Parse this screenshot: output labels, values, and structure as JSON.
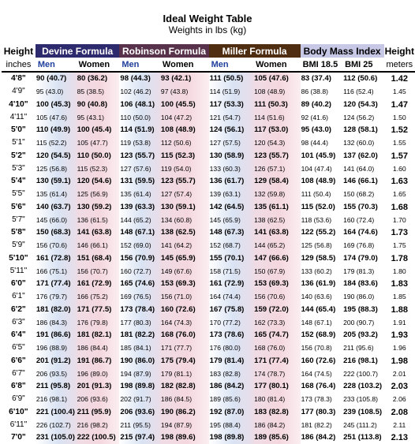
{
  "title": "Ideal Weight Table",
  "subtitle": "Weights in lbs (kg)",
  "header": {
    "height_label": "Height",
    "height_unit": "inches",
    "height_label_right": "Height",
    "height_unit_right": "meters",
    "devine": "Devine Formula",
    "robinson": "Robinson Formula",
    "miller": "Miller Formula",
    "bmi": "Body Mass Index",
    "men": "Men",
    "women": "Women",
    "bmi185": "BMI 18.5",
    "bmi25": "BMI 25"
  },
  "colors": {
    "devine": "#2e2a6e",
    "robinson": "#58324a",
    "miller": "#4e2d10",
    "bmi": "#c6c8e6",
    "men_bg": "#d9e3f3",
    "women_bg": "#f4d7de"
  },
  "rows": [
    {
      "h": "4'8\"",
      "dm": "90 (40.7)",
      "dw": "80 (36.2)",
      "rm": "98 (44.3)",
      "rw": "93 (42.1)",
      "mm": "111 (50.5)",
      "mw": "105 (47.6)",
      "b1": "83 (37.4)",
      "b2": "112 (50.6)",
      "m": "1.42"
    },
    {
      "h": "4'9\"",
      "dm": "95 (43.0)",
      "dw": "85 (38.5)",
      "rm": "102 (46.2)",
      "rw": "97 (43.8)",
      "mm": "114 (51.9)",
      "mw": "108 (48.9)",
      "b1": "86 (38.8)",
      "b2": "116 (52.4)",
      "m": "1.45"
    },
    {
      "h": "4'10\"",
      "dm": "100 (45.3)",
      "dw": "90 (40.8)",
      "rm": "106 (48.1)",
      "rw": "100 (45.5)",
      "mm": "117 (53.3)",
      "mw": "111 (50.3)",
      "b1": "89 (40.2)",
      "b2": "120 (54.3)",
      "m": "1.47"
    },
    {
      "h": "4'11\"",
      "dm": "105 (47.6)",
      "dw": "95 (43.1)",
      "rm": "110 (50.0)",
      "rw": "104 (47.2)",
      "mm": "121 (54.7)",
      "mw": "114 (51.6)",
      "b1": "92 (41.6)",
      "b2": "124 (56.2)",
      "m": "1.50"
    },
    {
      "h": "5'0\"",
      "dm": "110 (49.9)",
      "dw": "100 (45.4)",
      "rm": "114 (51.9)",
      "rw": "108 (48.9)",
      "mm": "124 (56.1)",
      "mw": "117 (53.0)",
      "b1": "95 (43.0)",
      "b2": "128 (58.1)",
      "m": "1.52"
    },
    {
      "h": "5'1\"",
      "dm": "115 (52.2)",
      "dw": "105 (47.7)",
      "rm": "119 (53.8)",
      "rw": "112 (50.6)",
      "mm": "127 (57.5)",
      "mw": "120 (54.3)",
      "b1": "98 (44.4)",
      "b2": "132 (60.0)",
      "m": "1.55"
    },
    {
      "h": "5'2\"",
      "dm": "120 (54.5)",
      "dw": "110 (50.0)",
      "rm": "123 (55.7)",
      "rw": "115 (52.3)",
      "mm": "130 (58.9)",
      "mw": "123 (55.7)",
      "b1": "101 (45.9)",
      "b2": "137 (62.0)",
      "m": "1.57"
    },
    {
      "h": "5'3\"",
      "dm": "125 (56.8)",
      "dw": "115 (52.3)",
      "rm": "127 (57.6)",
      "rw": "119 (54.0)",
      "mm": "133 (60.3)",
      "mw": "126 (57.1)",
      "b1": "104 (47.4)",
      "b2": "141 (64.0)",
      "m": "1.60"
    },
    {
      "h": "5'4\"",
      "dm": "130 (59.1)",
      "dw": "120 (54.6)",
      "rm": "131 (59.5)",
      "rw": "123 (55.7)",
      "mm": "136 (61.7)",
      "mw": "129 (58.4)",
      "b1": "108 (48.9)",
      "b2": "146 (66.1)",
      "m": "1.63"
    },
    {
      "h": "5'5\"",
      "dm": "135 (61.4)",
      "dw": "125 (56.9)",
      "rm": "135 (61.4)",
      "rw": "127 (57.4)",
      "mm": "139 (63.1)",
      "mw": "132 (59.8)",
      "b1": "111 (50.4)",
      "b2": "150 (68.2)",
      "m": "1.65"
    },
    {
      "h": "5'6\"",
      "dm": "140 (63.7)",
      "dw": "130 (59.2)",
      "rm": "139 (63.3)",
      "rw": "130 (59.1)",
      "mm": "142 (64.5)",
      "mw": "135 (61.1)",
      "b1": "115 (52.0)",
      "b2": "155 (70.3)",
      "m": "1.68"
    },
    {
      "h": "5'7\"",
      "dm": "145 (66.0)",
      "dw": "136 (61.5)",
      "rm": "144 (65.2)",
      "rw": "134 (60.8)",
      "mm": "145 (65.9)",
      "mw": "138 (62.5)",
      "b1": "118 (53.6)",
      "b2": "160 (72.4)",
      "m": "1.70"
    },
    {
      "h": "5'8\"",
      "dm": "150 (68.3)",
      "dw": "141 (63.8)",
      "rm": "148 (67.1)",
      "rw": "138 (62.5)",
      "mm": "148 (67.3)",
      "mw": "141 (63.8)",
      "b1": "122 (55.2)",
      "b2": "164 (74.6)",
      "m": "1.73"
    },
    {
      "h": "5'9\"",
      "dm": "156 (70.6)",
      "dw": "146 (66.1)",
      "rm": "152 (69.0)",
      "rw": "141 (64.2)",
      "mm": "152 (68.7)",
      "mw": "144 (65.2)",
      "b1": "125 (56.8)",
      "b2": "169 (76.8)",
      "m": "1.75"
    },
    {
      "h": "5'10\"",
      "dm": "161 (72.8)",
      "dw": "151 (68.4)",
      "rm": "156 (70.9)",
      "rw": "145 (65.9)",
      "mm": "155 (70.1)",
      "mw": "147 (66.6)",
      "b1": "129 (58.5)",
      "b2": "174 (79.0)",
      "m": "1.78"
    },
    {
      "h": "5'11\"",
      "dm": "166 (75.1)",
      "dw": "156 (70.7)",
      "rm": "160 (72.7)",
      "rw": "149 (67.6)",
      "mm": "158 (71.5)",
      "mw": "150 (67.9)",
      "b1": "133 (60.2)",
      "b2": "179 (81.3)",
      "m": "1.80"
    },
    {
      "h": "6'0\"",
      "dm": "171 (77.4)",
      "dw": "161 (72.9)",
      "rm": "165 (74.6)",
      "rw": "153 (69.3)",
      "mm": "161 (72.9)",
      "mw": "153 (69.3)",
      "b1": "136 (61.9)",
      "b2": "184 (83.6)",
      "m": "1.83"
    },
    {
      "h": "6'1\"",
      "dm": "176 (79.7)",
      "dw": "166 (75.2)",
      "rm": "169 (76.5)",
      "rw": "156 (71.0)",
      "mm": "164 (74.4)",
      "mw": "156 (70.6)",
      "b1": "140 (63.6)",
      "b2": "190 (86.0)",
      "m": "1.85"
    },
    {
      "h": "6'2\"",
      "dm": "181 (82.0)",
      "dw": "171 (77.5)",
      "rm": "173 (78.4)",
      "rw": "160 (72.6)",
      "mm": "167 (75.8)",
      "mw": "159 (72.0)",
      "b1": "144 (65.4)",
      "b2": "195 (88.3)",
      "m": "1.88"
    },
    {
      "h": "6'3\"",
      "dm": "186 (84.3)",
      "dw": "176 (79.8)",
      "rm": "177 (80.3)",
      "rw": "164 (74.3)",
      "mm": "170 (77.2)",
      "mw": "162 (73.3)",
      "b1": "148 (67.1)",
      "b2": "200 (90.7)",
      "m": "1.91"
    },
    {
      "h": "6'4\"",
      "dm": "191 (86.6)",
      "dw": "181 (82.1)",
      "rm": "181 (82.2)",
      "rw": "168 (76.0)",
      "mm": "173 (78.6)",
      "mw": "165 (74.7)",
      "b1": "152 (68.9)",
      "b2": "205 (93.2)",
      "m": "1.93"
    },
    {
      "h": "6'5\"",
      "dm": "196 (88.9)",
      "dw": "186 (84.4)",
      "rm": "185 (84.1)",
      "rw": "171 (77.7)",
      "mm": "176 (80.0)",
      "mw": "168 (76.0)",
      "b1": "156 (70.8)",
      "b2": "211 (95.6)",
      "m": "1.96"
    },
    {
      "h": "6'6\"",
      "dm": "201 (91.2)",
      "dw": "191 (86.7)",
      "rm": "190 (86.0)",
      "rw": "175 (79.4)",
      "mm": "179 (81.4)",
      "mw": "171 (77.4)",
      "b1": "160 (72.6)",
      "b2": "216 (98.1)",
      "m": "1.98"
    },
    {
      "h": "6'7\"",
      "dm": "206 (93.5)",
      "dw": "196 (89.0)",
      "rm": "194 (87.9)",
      "rw": "179 (81.1)",
      "mm": "183 (82.8)",
      "mw": "174 (78.7)",
      "b1": "164 (74.5)",
      "b2": "222 (100.7)",
      "m": "2.01"
    },
    {
      "h": "6'8\"",
      "dm": "211 (95.8)",
      "dw": "201 (91.3)",
      "rm": "198 (89.8)",
      "rw": "182 (82.8)",
      "mm": "186 (84.2)",
      "mw": "177 (80.1)",
      "b1": "168 (76.4)",
      "b2": "228 (103.2)",
      "m": "2.03"
    },
    {
      "h": "6'9\"",
      "dm": "216 (98.1)",
      "dw": "206 (93.6)",
      "rm": "202 (91.7)",
      "rw": "186 (84.5)",
      "mm": "189 (85.6)",
      "mw": "180 (81.4)",
      "b1": "173 (78.3)",
      "b2": "233 (105.8)",
      "m": "2.06"
    },
    {
      "h": "6'10\"",
      "dm": "221 (100.4)",
      "dw": "211 (95.9)",
      "rm": "206 (93.6)",
      "rw": "190 (86.2)",
      "mm": "192 (87.0)",
      "mw": "183 (82.8)",
      "b1": "177 (80.3)",
      "b2": "239 (108.5)",
      "m": "2.08"
    },
    {
      "h": "6'11\"",
      "dm": "226 (102.7)",
      "dw": "216 (98.2)",
      "rm": "211 (95.5)",
      "rw": "194 (87.9)",
      "mm": "195 (88.4)",
      "mw": "186 (84.2)",
      "b1": "181 (82.2)",
      "b2": "245 (111.2)",
      "m": "2.11"
    },
    {
      "h": "7'0\"",
      "dm": "231 (105.0)",
      "dw": "222 (100.5)",
      "rm": "215 (97.4)",
      "rw": "198 (89.6)",
      "mm": "198 (89.8)",
      "mw": "189 (85.6)",
      "b1": "186 (84.2)",
      "b2": "251 (113.8)",
      "m": "2.13"
    }
  ]
}
